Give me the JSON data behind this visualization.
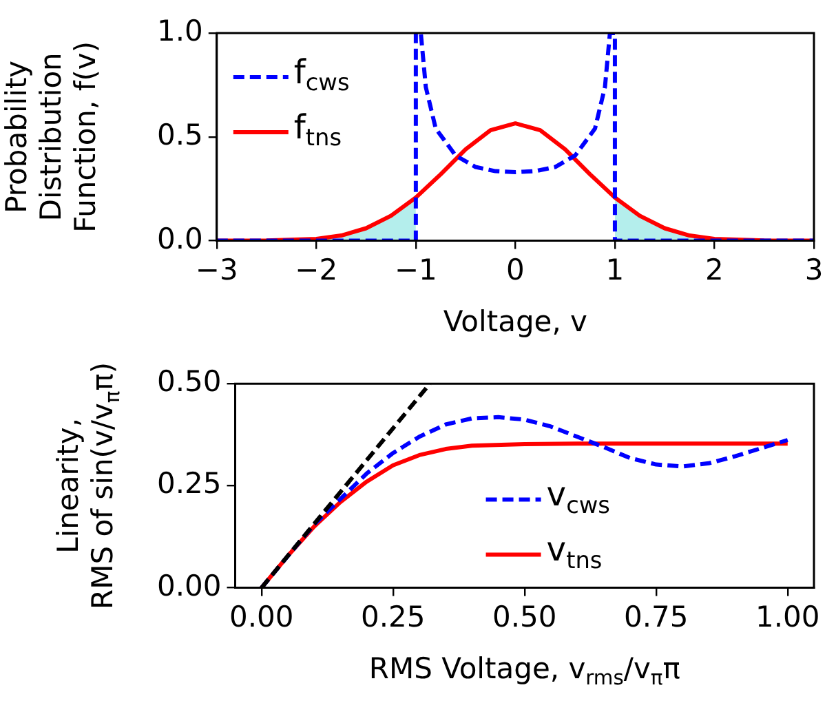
{
  "chart_data": [
    {
      "type": "line",
      "ylabel": "Probability\nDistribution\nFunction, f(v)",
      "xlabel": "Voltage, v",
      "xlim": [
        -3,
        3
      ],
      "xticks": [
        {
          "value": -3,
          "label": "−3"
        },
        {
          "value": -2,
          "label": "−2"
        },
        {
          "value": -1,
          "label": "−1"
        },
        0,
        1,
        2,
        3
      ],
      "ylim": [
        0,
        1
      ],
      "yticks": [
        {
          "value": 0,
          "label": "0.0"
        },
        {
          "value": 0.5,
          "label": "0.5"
        },
        {
          "value": 1,
          "label": "1.0"
        }
      ],
      "grid": false,
      "legend": "top left",
      "series": [
        {
          "type": "area",
          "color": "#b4eeec",
          "x": [
            -2,
            -1.75,
            -1.5,
            -1.25,
            -1
          ],
          "values": [
            0.009,
            0.025,
            0.06,
            0.12,
            0.208
          ]
        },
        {
          "type": "area",
          "color": "#b4eeec",
          "x": [
            1,
            1.25,
            1.5,
            1.75,
            2
          ],
          "values": [
            0.208,
            0.12,
            0.06,
            0.025,
            0.009
          ]
        },
        {
          "name": "f$_{cws}$",
          "type": "line",
          "line_style": "dashed",
          "color": "#0000ff",
          "x": [
            -3,
            -1,
            -1,
            -0.95,
            -0.9,
            -0.8,
            -0.6,
            -0.4,
            -0.2,
            0,
            0.2,
            0.4,
            0.6,
            0.8,
            0.9,
            0.95,
            1,
            1,
            3
          ],
          "values": [
            0,
            0,
            1,
            1,
            0.74,
            0.54,
            0.41,
            0.355,
            0.335,
            0.33,
            0.335,
            0.355,
            0.41,
            0.54,
            0.74,
            1,
            1,
            0,
            0
          ]
        },
        {
          "name": "f$_{tns}$",
          "type": "line",
          "line_style": "solid",
          "color": "#ff0000",
          "x": [
            -3,
            -2.5,
            -2,
            -1.75,
            -1.5,
            -1.25,
            -1,
            -0.75,
            -0.5,
            -0.25,
            0,
            0.25,
            0.5,
            0.75,
            1,
            1.25,
            1.5,
            1.75,
            2,
            2.5,
            3
          ],
          "values": [
            0,
            0.001,
            0.009,
            0.025,
            0.06,
            0.12,
            0.208,
            0.32,
            0.44,
            0.532,
            0.565,
            0.532,
            0.44,
            0.32,
            0.208,
            0.12,
            0.06,
            0.025,
            0.009,
            0.001,
            0
          ]
        }
      ]
    },
    {
      "type": "line",
      "ylabel": "Linearity,\nRMS of sin(v/v$_{π}$π)",
      "xlabel": "RMS Voltage, v$_{rms}$/v$_{π}$π",
      "xlim": [
        -0.05,
        1.05
      ],
      "xticks": [
        {
          "value": 0,
          "label": "0.00"
        },
        {
          "value": 0.25,
          "label": "0.25"
        },
        {
          "value": 0.5,
          "label": "0.50"
        },
        {
          "value": 0.75,
          "label": "0.75"
        },
        {
          "value": 1,
          "label": "1.00"
        }
      ],
      "ylim": [
        0,
        0.5
      ],
      "yticks": [
        {
          "value": 0,
          "label": "0.00"
        },
        {
          "value": 0.25,
          "label": "0.25"
        },
        {
          "value": 0.5,
          "label": "0.50"
        }
      ],
      "grid": false,
      "legend": "lower center",
      "series": [
        {
          "type": "line",
          "line_style": "dashed",
          "color": "#000000",
          "x": [
            0,
            0.32
          ],
          "values": [
            0,
            0.5
          ]
        },
        {
          "name": "v$_{cws}$",
          "type": "line",
          "line_style": "dashed",
          "color": "#0000ff",
          "x": [
            0,
            0.1,
            0.2,
            0.25,
            0.3,
            0.35,
            0.4,
            0.45,
            0.5,
            0.55,
            0.6,
            0.65,
            0.7,
            0.75,
            0.8,
            0.85,
            0.9,
            0.95,
            1
          ],
          "values": [
            0,
            0.155,
            0.28,
            0.33,
            0.37,
            0.4,
            0.415,
            0.418,
            0.412,
            0.395,
            0.37,
            0.345,
            0.318,
            0.302,
            0.297,
            0.305,
            0.322,
            0.342,
            0.362
          ]
        },
        {
          "name": "v$_{tns}$",
          "type": "line",
          "line_style": "solid",
          "color": "#ff0000",
          "x": [
            0,
            0.05,
            0.1,
            0.15,
            0.2,
            0.25,
            0.3,
            0.35,
            0.4,
            0.5,
            0.6,
            0.8,
            1
          ],
          "values": [
            0,
            0.078,
            0.15,
            0.21,
            0.26,
            0.3,
            0.325,
            0.34,
            0.348,
            0.352,
            0.353,
            0.353,
            0.353
          ]
        }
      ]
    }
  ]
}
